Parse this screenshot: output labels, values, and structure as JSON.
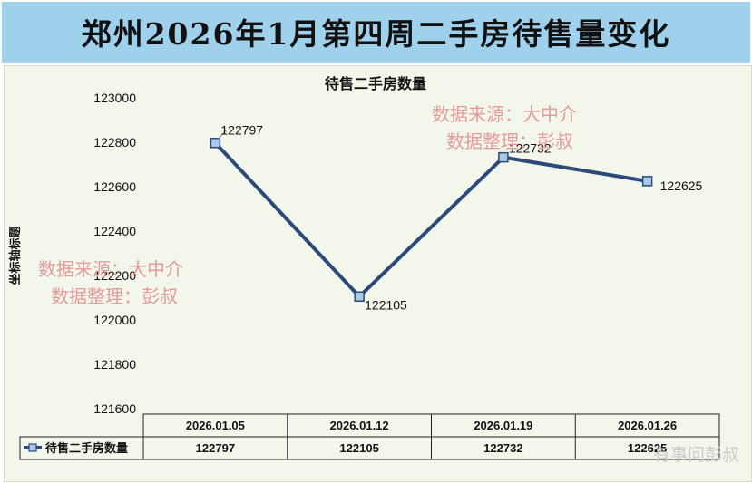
{
  "page": {
    "title": "郑州2026年1月第四周二手房待售量变化"
  },
  "chart_data": {
    "type": "line",
    "title": "待售二手房数量",
    "xlabel": "",
    "ylabel": "坐标轴标题",
    "categories": [
      "2026.01.05",
      "2026.01.12",
      "2026.01.19",
      "2026.01.26"
    ],
    "series": [
      {
        "name": "待售二手房数量",
        "values": [
          122797,
          122105,
          122732,
          122625
        ]
      }
    ],
    "ylim": [
      121600,
      123000
    ],
    "yticks": [
      121600,
      121800,
      122000,
      122200,
      122400,
      122600,
      122800,
      123000
    ],
    "data_labels": [
      "122797",
      "122105",
      "122732",
      "122625"
    ],
    "table_values": [
      "122797",
      "122105",
      "122732",
      "122625"
    ],
    "grid": false,
    "legend": "data-table",
    "line_color": "#2b4a7a",
    "marker_color": "#a9c9e4"
  },
  "watermarks": [
    {
      "line1": "数据来源：大中介",
      "line2": "数据整理：彭叔"
    },
    {
      "line1": "数据来源：大中介",
      "line2": "数据整理：彭叔"
    }
  ],
  "corner_mark": "有事问彭叔"
}
